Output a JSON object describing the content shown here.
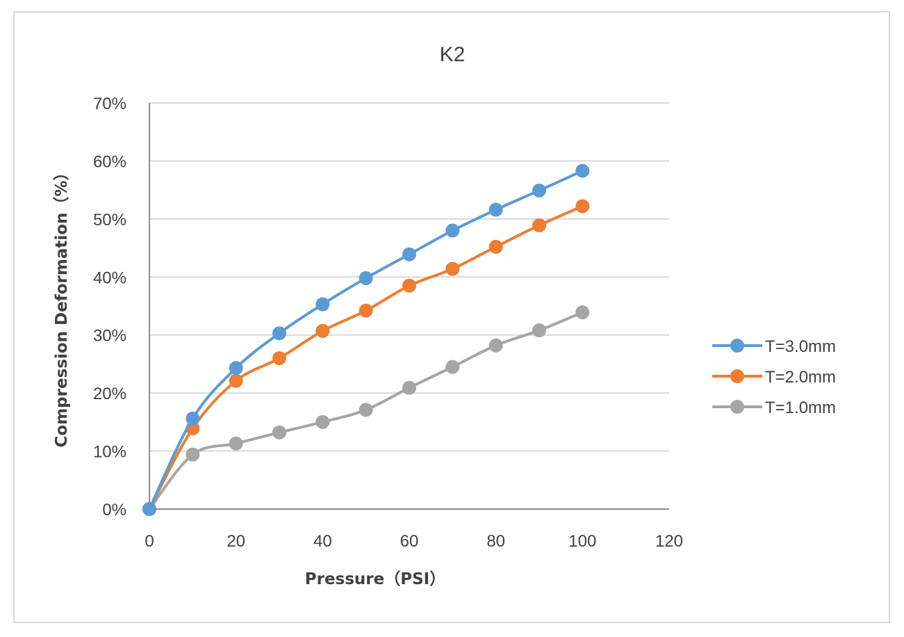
{
  "chart_data": {
    "type": "line",
    "title": "K2",
    "xlabel": "Pressure（PSI）",
    "ylabel": "Compression Deformation（%）",
    "xlim": [
      0,
      120
    ],
    "ylim": [
      0,
      0.7
    ],
    "x_ticks": [
      0,
      20,
      40,
      60,
      80,
      100,
      120
    ],
    "x_tick_labels": [
      "0",
      "20",
      "40",
      "60",
      "80",
      "100",
      "120"
    ],
    "y_ticks": [
      0,
      0.1,
      0.2,
      0.3,
      0.4,
      0.5,
      0.6,
      0.7
    ],
    "y_tick_labels": [
      "0%",
      "10%",
      "20%",
      "30%",
      "40%",
      "50%",
      "60%",
      "70%"
    ],
    "grid": "horizontal",
    "legend_position": "right",
    "smooth": true,
    "x": [
      0,
      10,
      20,
      30,
      40,
      50,
      60,
      70,
      80,
      90,
      100
    ],
    "series": [
      {
        "name": "T=3.0mm",
        "color": "#5b9bd5",
        "values": [
          0,
          0.156,
          0.243,
          0.303,
          0.353,
          0.398,
          0.439,
          0.48,
          0.516,
          0.549,
          0.583
        ]
      },
      {
        "name": "T=2.0mm",
        "color": "#ed7d31",
        "values": [
          0,
          0.139,
          0.221,
          0.26,
          0.307,
          0.342,
          0.385,
          0.414,
          0.452,
          0.489,
          0.522
        ]
      },
      {
        "name": "T=1.0mm",
        "color": "#a5a5a5",
        "values": [
          0,
          0.094,
          0.113,
          0.132,
          0.15,
          0.171,
          0.209,
          0.245,
          0.282,
          0.308,
          0.339
        ]
      }
    ]
  }
}
